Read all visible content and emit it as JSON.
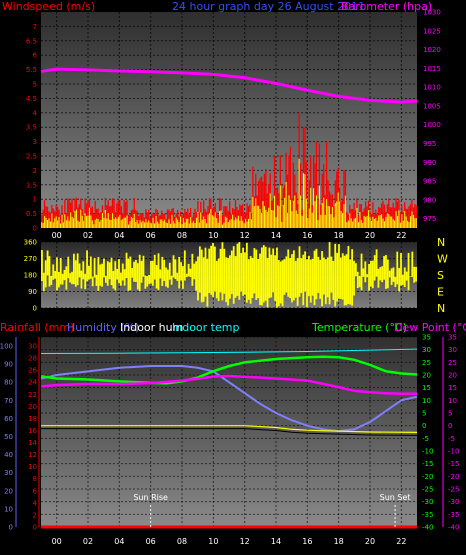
{
  "colors": {
    "red": "#ff0000",
    "yellow": "#ffff00",
    "magenta": "#ff00ff",
    "green": "#00ff00",
    "blue": "#6060ff",
    "cyan": "#00ffff",
    "white": "#ffffff",
    "blackline": "#000000",
    "lightblue": "#8080ff"
  },
  "chart_data": [
    {
      "type": "bar",
      "panel": "wind",
      "title": "24 hour graph day  26 August 2011",
      "ylabel_left": "Windspeed (m/s)",
      "ylabel_right": "Barometer (hpa)",
      "left_ticks": [
        "0",
        "0.5",
        "1",
        "1.5",
        "2",
        "2.5",
        "3",
        "3.5",
        "4",
        "4.5",
        "5",
        "5.5",
        "6",
        "6.5",
        "7"
      ],
      "right_ticks": [
        "975",
        "980",
        "985",
        "990",
        "995",
        "1000",
        "1005",
        "1010",
        "1015",
        "1020",
        "1025",
        "1030"
      ],
      "x_ticks": [
        "00",
        "02",
        "04",
        "06",
        "08",
        "10",
        "12",
        "14",
        "16",
        "18",
        "20",
        "22"
      ],
      "xlim": [
        -1,
        23
      ],
      "ylim_left": [
        0,
        7.5
      ],
      "ylim_right": [
        972.5,
        1030
      ],
      "gust_peaks": [
        [
          15.5,
          4.0
        ],
        [
          16.6,
          3.0
        ],
        [
          17.2,
          3.0
        ],
        [
          14.8,
          2.5
        ],
        [
          13.9,
          2.5
        ],
        [
          16.2,
          2.5
        ],
        [
          15.8,
          3.5
        ]
      ],
      "barometer_points": [
        [
          -1,
          1014.2
        ],
        [
          0,
          1014.8
        ],
        [
          2,
          1014.6
        ],
        [
          4,
          1014.3
        ],
        [
          6,
          1014.1
        ],
        [
          8,
          1013.8
        ],
        [
          10,
          1013.4
        ],
        [
          12,
          1012.5
        ],
        [
          14,
          1011.0
        ],
        [
          16,
          1009.2
        ],
        [
          18,
          1007.5
        ],
        [
          20,
          1006.5
        ],
        [
          22,
          1006.0
        ],
        [
          23,
          1006.3
        ]
      ]
    },
    {
      "type": "bar",
      "panel": "direction",
      "left_ticks": [
        "0",
        "90",
        "180",
        "270",
        "360"
      ],
      "right_labels": [
        "N",
        "W",
        "S",
        "E",
        "N"
      ],
      "xlim": [
        -1,
        23
      ],
      "ylim": [
        0,
        360
      ]
    },
    {
      "type": "line",
      "panel": "temperature",
      "legend": [
        {
          "name": "Rainfall (mm)",
          "color": "#ff0000"
        },
        {
          "name": "Humidity (%)",
          "color": "#6060ff"
        },
        {
          "name": "Indoor hum",
          "color": "#ffffff"
        },
        {
          "name": "Indoor temp",
          "color": "#00ffff"
        },
        {
          "name": "Temperature (°C)",
          "color": "#00ff00"
        },
        {
          "name": "Dew Point (°C)",
          "color": "#ff00ff"
        }
      ],
      "axis_hum_ticks": [
        "0",
        "10",
        "20",
        "30",
        "40",
        "50",
        "60",
        "70",
        "80",
        "90",
        "100"
      ],
      "axis_rain_ticks": [
        "0",
        "2",
        "4",
        "6",
        "8",
        "10",
        "12",
        "14",
        "16",
        "18",
        "20",
        "22",
        "24",
        "26",
        "28",
        "30"
      ],
      "axis_temp_ticks": [
        "-40",
        "-35",
        "-30",
        "-25",
        "-20",
        "-15",
        "-10",
        "-5",
        "0",
        "5",
        "10",
        "15",
        "20",
        "25",
        "30",
        "35"
      ],
      "xlim": [
        -1,
        23
      ],
      "temp_lim": [
        -40,
        35
      ],
      "x_ticks": [
        "00",
        "02",
        "04",
        "06",
        "08",
        "10",
        "12",
        "14",
        "16",
        "18",
        "20",
        "22"
      ],
      "series": [
        {
          "name": "Humidity",
          "axis": "hum",
          "points": [
            [
              -1,
              82
            ],
            [
              0,
              84
            ],
            [
              2,
              86
            ],
            [
              4,
              88
            ],
            [
              6,
              89
            ],
            [
              8,
              89
            ],
            [
              9,
              88
            ],
            [
              10,
              86
            ],
            [
              11,
              80
            ],
            [
              12,
              74
            ],
            [
              13,
              68
            ],
            [
              14,
              63
            ],
            [
              15,
              59
            ],
            [
              16,
              56
            ],
            [
              17,
              54
            ],
            [
              18,
              53
            ],
            [
              19,
              54
            ],
            [
              20,
              58
            ],
            [
              21,
              64
            ],
            [
              22,
              70
            ],
            [
              23,
              72
            ]
          ]
        },
        {
          "name": "Indoor temp",
          "axis": "temp",
          "points": [
            [
              -1,
              28.5
            ],
            [
              4,
              28.6
            ],
            [
              8,
              28.8
            ],
            [
              12,
              29.0
            ],
            [
              16,
              29.3
            ],
            [
              20,
              29.8
            ],
            [
              23,
              30.2
            ]
          ]
        },
        {
          "name": "Temperature",
          "axis": "temp",
          "points": [
            [
              -1,
              19.5
            ],
            [
              0,
              18.6
            ],
            [
              2,
              18.2
            ],
            [
              4,
              17.5
            ],
            [
              6,
              16.9
            ],
            [
              7,
              16.7
            ],
            [
              8,
              17.5
            ],
            [
              9,
              19.0
            ],
            [
              10,
              21.5
            ],
            [
              11,
              23.5
            ],
            [
              12,
              25.0
            ],
            [
              14,
              26.3
            ],
            [
              16,
              27.0
            ],
            [
              17,
              27.2
            ],
            [
              18,
              27.0
            ],
            [
              19,
              26.0
            ],
            [
              20,
              24.0
            ],
            [
              21,
              21.5
            ],
            [
              22,
              20.6
            ],
            [
              23,
              20.2
            ]
          ]
        },
        {
          "name": "Dew Point",
          "axis": "temp",
          "points": [
            [
              -1,
              15.5
            ],
            [
              0,
              16.0
            ],
            [
              2,
              16.5
            ],
            [
              4,
              16.4
            ],
            [
              6,
              16.8
            ],
            [
              8,
              17.8
            ],
            [
              9,
              18.5
            ],
            [
              10,
              19.4
            ],
            [
              11,
              19.6
            ],
            [
              12,
              19.3
            ],
            [
              14,
              18.6
            ],
            [
              16,
              17.8
            ],
            [
              17,
              16.5
            ],
            [
              18,
              15.2
            ],
            [
              19,
              13.8
            ],
            [
              20,
              13.2
            ],
            [
              21,
              12.8
            ],
            [
              22,
              12.6
            ],
            [
              23,
              12.6
            ]
          ]
        },
        {
          "name": "Indoor hum",
          "axis": "hum",
          "points": [
            [
              -1,
              56
            ],
            [
              2,
              56
            ],
            [
              4,
              56
            ],
            [
              6,
              56
            ],
            [
              8,
              56
            ],
            [
              10,
              56
            ],
            [
              12,
              56
            ],
            [
              14,
              55
            ],
            [
              15,
              54
            ],
            [
              16,
              53.5
            ],
            [
              17,
              53.2
            ],
            [
              18,
              53
            ],
            [
              20,
              52.5
            ],
            [
              23,
              52.3
            ]
          ]
        },
        {
          "name": "Rainfall",
          "axis": "rain",
          "points": [
            [
              -1,
              0
            ],
            [
              23,
              0
            ]
          ]
        }
      ],
      "events": [
        {
          "label": "Sun Rise",
          "x": 6.0
        },
        {
          "label": "Sun Set",
          "x": 21.6
        }
      ]
    }
  ]
}
